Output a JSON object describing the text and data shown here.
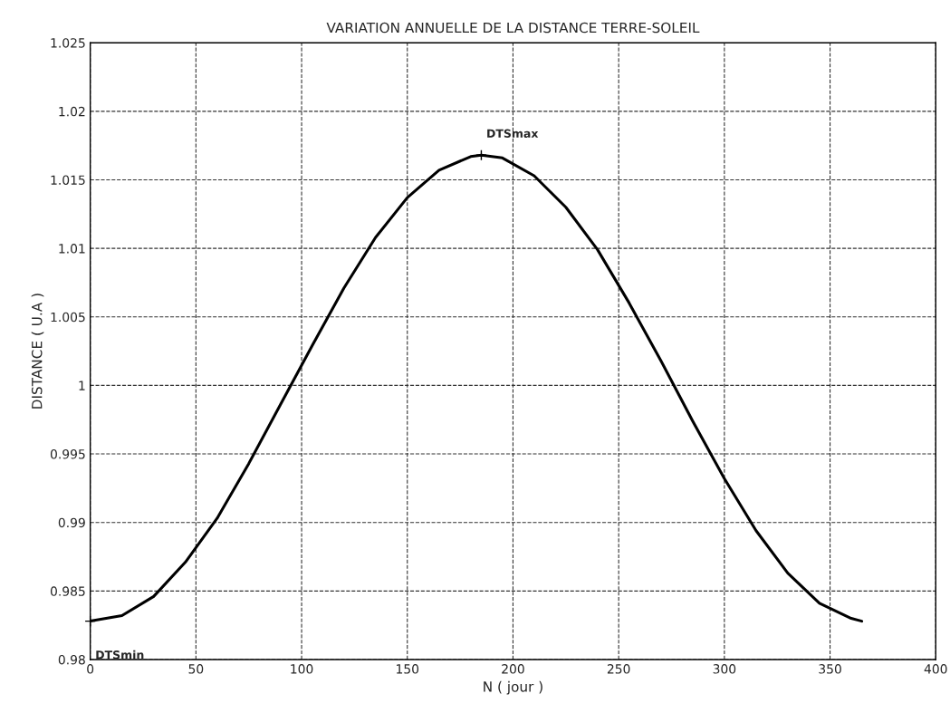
{
  "chart_data": {
    "type": "line",
    "title": "VARIATION ANNUELLE DE LA DISTANCE TERRE-SOLEIL",
    "xlabel": "N ( jour )",
    "ylabel": "DISTANCE ( U.A )",
    "x": [
      0,
      15,
      30,
      45,
      60,
      75,
      90,
      105,
      120,
      135,
      150,
      165,
      180,
      185,
      195,
      210,
      225,
      240,
      255,
      270,
      285,
      300,
      315,
      330,
      345,
      360,
      365
    ],
    "series": [
      {
        "color": "#000000",
        "values": [
          0.9828,
          0.9832,
          0.9846,
          0.9871,
          0.9903,
          0.9943,
          0.9986,
          1.0029,
          1.0071,
          1.0108,
          1.0137,
          1.0157,
          1.0167,
          1.0168,
          1.0166,
          1.0153,
          1.013,
          1.0099,
          1.006,
          1.0018,
          0.9974,
          0.9932,
          0.9894,
          0.9863,
          0.9841,
          0.983,
          0.9828
        ]
      }
    ],
    "xlim": [
      0,
      400
    ],
    "xticks": [
      0,
      50,
      100,
      150,
      200,
      250,
      300,
      350,
      400
    ],
    "ylim": [
      0.98,
      1.025
    ],
    "yticks": [
      0.98,
      0.985,
      0.99,
      0.995,
      1,
      1.005,
      1.01,
      1.015,
      1.02,
      1.025
    ],
    "grid": true,
    "line_style": "solid",
    "annotations": [
      {
        "text": "DTSmax",
        "x": 185,
        "y": 1.0168
      },
      {
        "text": "DTSmin",
        "x": 0,
        "y": 0.9828
      }
    ]
  }
}
